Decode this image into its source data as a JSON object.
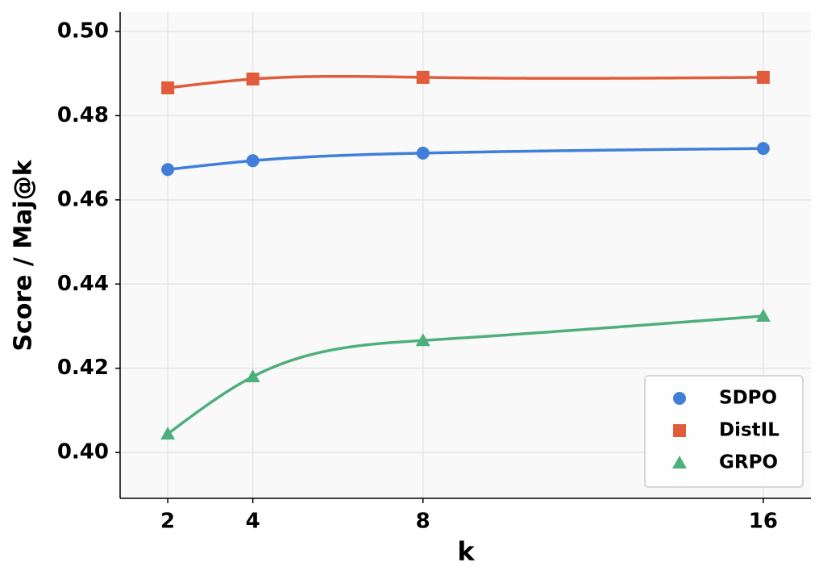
{
  "chart_data": {
    "type": "line",
    "x_label": "k",
    "y_label": "Score / Maj@k",
    "x": [
      2,
      4,
      8,
      16
    ],
    "series": [
      {
        "name": "SDPO",
        "color": "#3f7fd9",
        "marker": "circle",
        "values": [
          0.4672,
          0.4693,
          0.4711,
          0.4722
        ]
      },
      {
        "name": "DistIL",
        "color": "#e05c3b",
        "marker": "square",
        "values": [
          0.4866,
          0.4887,
          0.4891,
          0.4891
        ]
      },
      {
        "name": "GRPO",
        "color": "#4daf7c",
        "marker": "triangle",
        "values": [
          0.4044,
          0.418,
          0.4266,
          0.4324
        ]
      }
    ],
    "xlim": [
      0.88,
      17.12
    ],
    "ylim": [
      0.3891,
      0.5046
    ],
    "xticks": [
      2,
      4,
      8,
      16
    ],
    "yticks": [
      {
        "value": 0.4,
        "label": "0.40"
      },
      0.42,
      0.44,
      0.46,
      0.48,
      {
        "value": 0.5,
        "label": "0.50"
      }
    ],
    "grid": true,
    "legend": "lower right",
    "smooth": true
  }
}
